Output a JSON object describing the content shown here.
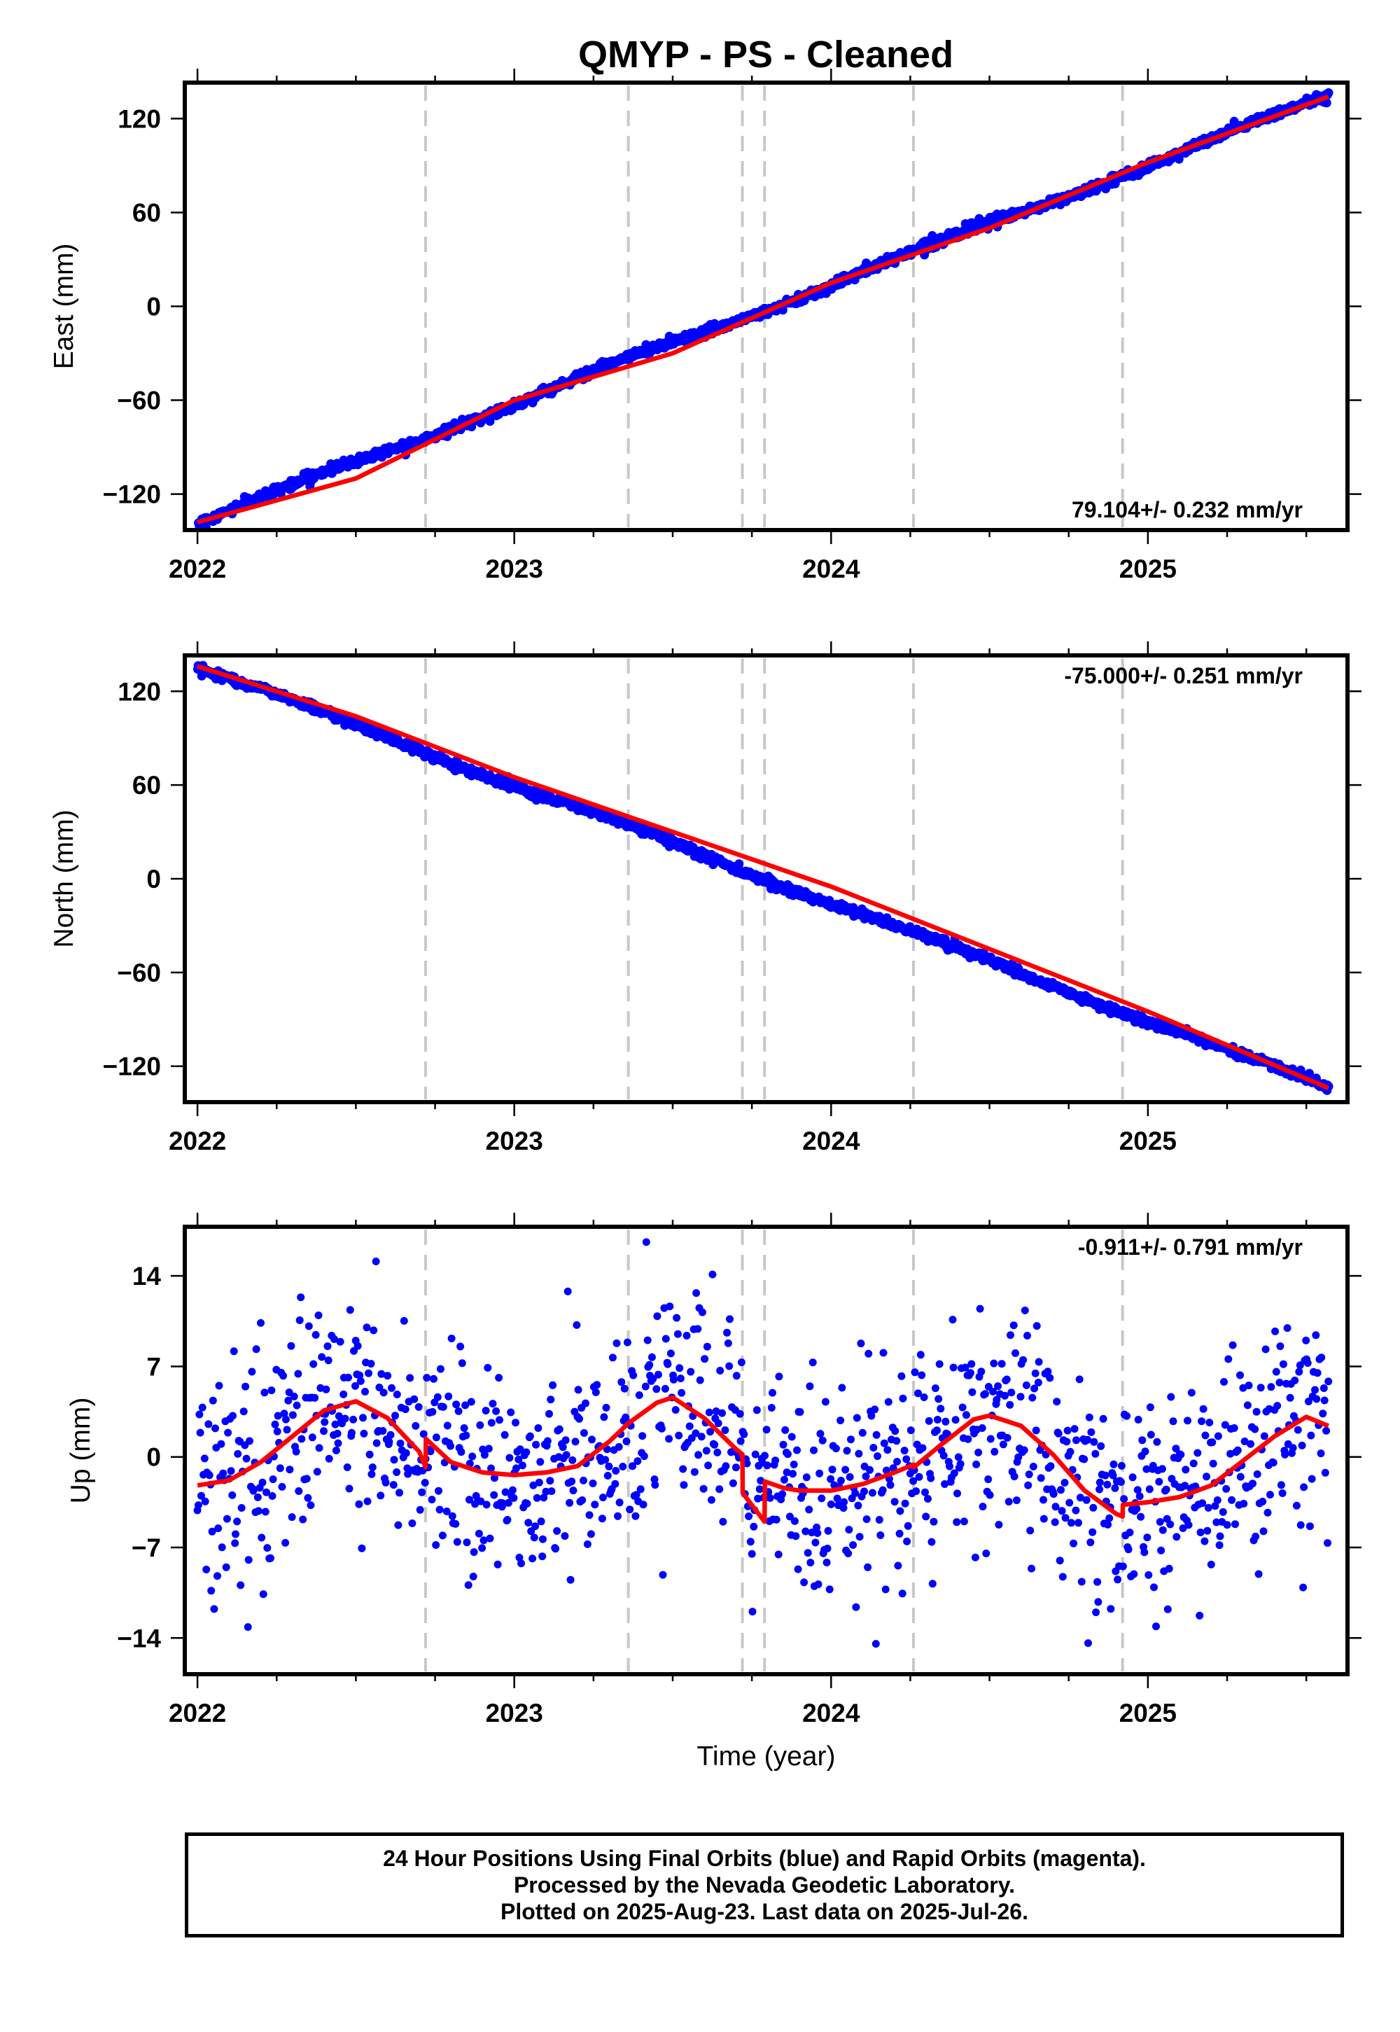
{
  "title": "QMYP  - PS - Cleaned",
  "footer": {
    "line1": "24 Hour Positions Using Final Orbits (blue) and Rapid Orbits (magenta).",
    "line2": "Processed by the Nevada Geodetic Laboratory.",
    "line3": "Plotted on 2025-Aug-23. Last data on 2025-Jul-26."
  },
  "colors": {
    "observations": "#0000ff",
    "model": "#ff0000",
    "event_lines": "#c8c8c8",
    "frame": "#000000"
  },
  "chart_data": [
    {
      "type": "scatter",
      "ylabel": "East (mm)",
      "xlabel": "",
      "xlim": [
        2021.96,
        2025.63
      ],
      "ylim": [
        -143,
        143
      ],
      "x_ticks": [
        "2022",
        "2023",
        "2024",
        "2025"
      ],
      "y_ticks": [
        "120",
        "60",
        "0",
        "-60",
        "-120"
      ],
      "y_tick_values": [
        120,
        60,
        0,
        -60,
        -120
      ],
      "rate_label": "79.104+/- 0.232 mm/yr",
      "rate_position": "bottom-right",
      "event_lines": [
        2022.72,
        2023.36,
        2023.72,
        2023.79,
        2024.26,
        2024.92
      ],
      "observations": {
        "series": "daily positions",
        "start": 2022.0,
        "end": 2025.57,
        "start_value": -138,
        "end_value": 134,
        "scatter_sd": 1.5,
        "annual_amplitude": 2
      },
      "model": {
        "x": [
          2022.0,
          2022.5,
          2023.0,
          2023.5,
          2024.0,
          2024.5,
          2025.0,
          2025.57
        ],
        "y": [
          -138,
          -110,
          -60,
          -30,
          15,
          50,
          92,
          134
        ]
      }
    },
    {
      "type": "scatter",
      "ylabel": "North (mm)",
      "xlabel": "",
      "xlim": [
        2021.96,
        2025.63
      ],
      "ylim": [
        -143,
        143
      ],
      "x_ticks": [
        "2022",
        "2023",
        "2024",
        "2025"
      ],
      "y_ticks": [
        "120",
        "60",
        "0",
        "-60",
        "-120"
      ],
      "y_tick_values": [
        120,
        60,
        0,
        -60,
        -120
      ],
      "rate_label": "-75.000+/- 0.251 mm/yr",
      "rate_position": "top-right",
      "event_lines": [
        2022.72,
        2023.36,
        2023.72,
        2023.79,
        2024.26,
        2024.92
      ],
      "observations": {
        "series": "daily positions",
        "start": 2022.0,
        "end": 2025.57,
        "start_value": 136,
        "end_value": -134,
        "scatter_sd": 1.4,
        "annual_amplitude": 1.5
      },
      "model": {
        "x": [
          2022.0,
          2022.5,
          2023.0,
          2023.5,
          2024.0,
          2024.5,
          2025.0,
          2025.57
        ],
        "y": [
          136,
          104,
          65,
          30,
          -5,
          -45,
          -85,
          -134
        ]
      }
    },
    {
      "type": "scatter",
      "ylabel": "Up (mm)",
      "xlabel": "Time (year)",
      "xlim": [
        2021.96,
        2025.63
      ],
      "ylim": [
        -16.8,
        17.8
      ],
      "x_ticks": [
        "2022",
        "2023",
        "2024",
        "2025"
      ],
      "y_ticks": [
        "14",
        "7",
        "0",
        "-7",
        "-14"
      ],
      "y_tick_values": [
        14,
        7,
        0,
        -7,
        -14
      ],
      "rate_label": "-0.911+/- 0.791 mm/yr",
      "rate_position": "top-right",
      "event_lines": [
        2022.72,
        2023.36,
        2023.72,
        2023.79,
        2024.26,
        2024.92
      ],
      "observations": {
        "series": "daily positions",
        "start": 2022.0,
        "end": 2025.57,
        "scatter_sd": 4.2,
        "follows": "model"
      },
      "model": {
        "x": [
          2022.0,
          2022.1,
          2022.2,
          2022.3,
          2022.4,
          2022.5,
          2022.6,
          2022.7,
          2022.72,
          2022.721,
          2022.8,
          2022.9,
          2023.0,
          2023.1,
          2023.2,
          2023.3,
          2023.36,
          2023.45,
          2023.5,
          2023.6,
          2023.7,
          2023.72,
          2023.721,
          2023.79,
          2023.791,
          2023.85,
          2023.9,
          2024.0,
          2024.1,
          2024.2,
          2024.26,
          2024.261,
          2024.35,
          2024.45,
          2024.5,
          2024.6,
          2024.7,
          2024.8,
          2024.9,
          2024.92,
          2024.921,
          2025.0,
          2025.1,
          2025.2,
          2025.3,
          2025.4,
          2025.5,
          2025.57
        ],
        "y": [
          -2.2,
          -1.8,
          -0.4,
          1.6,
          3.6,
          4.3,
          3.0,
          0.4,
          -0.8,
          1.4,
          -0.4,
          -1.2,
          -1.4,
          -1.2,
          -0.7,
          1.2,
          2.6,
          4.2,
          4.6,
          3.0,
          0.6,
          0.2,
          -2.8,
          -5.0,
          -1.9,
          -2.4,
          -2.6,
          -2.6,
          -2.1,
          -1.2,
          -0.6,
          -0.8,
          1.0,
          2.9,
          3.2,
          2.4,
          0.2,
          -2.6,
          -4.4,
          -4.6,
          -3.7,
          -3.5,
          -3.1,
          -2.2,
          -0.3,
          1.6,
          3.1,
          2.4
        ]
      }
    }
  ]
}
